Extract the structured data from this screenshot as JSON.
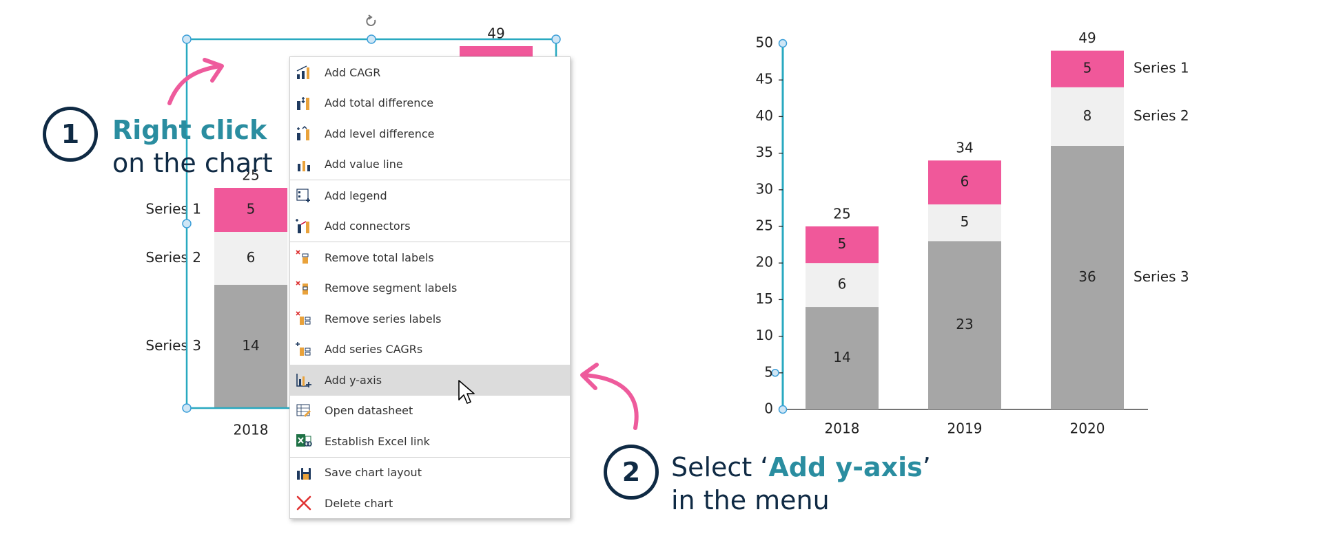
{
  "steps": [
    {
      "number": "1",
      "bold": "Right click",
      "text": "on the chart"
    },
    {
      "number": "2",
      "prefix": "Select ‘",
      "bold": "Add y-axis",
      "suffix": "’",
      "text": "in the menu"
    }
  ],
  "colors": {
    "series1": "#f0589a",
    "series2": "#f0f0f0",
    "series3": "#a6a6a6",
    "accent": "#2a8da0",
    "dark": "#0f2a44",
    "selection": "#29a9c0"
  },
  "context_menu": {
    "items": [
      {
        "label": "Add CAGR",
        "icon": "cagr-icon"
      },
      {
        "label": "Add total difference",
        "icon": "total-difference-icon"
      },
      {
        "label": "Add level difference",
        "icon": "level-difference-icon"
      },
      {
        "label": "Add value line",
        "icon": "value-line-icon"
      },
      {
        "label": "Add legend",
        "icon": "legend-icon"
      },
      {
        "label": "Add connectors",
        "icon": "connectors-icon"
      },
      {
        "label": "Remove total labels",
        "icon": "remove-total-labels-icon"
      },
      {
        "label": "Remove segment labels",
        "icon": "remove-segment-labels-icon"
      },
      {
        "label": "Remove series labels",
        "icon": "remove-series-labels-icon"
      },
      {
        "label": "Add series CAGRs",
        "icon": "series-cagrs-icon"
      },
      {
        "label": "Add y-axis",
        "icon": "y-axis-icon"
      },
      {
        "label": "Open datasheet",
        "icon": "datasheet-icon"
      },
      {
        "label": "Establish Excel link",
        "icon": "excel-link-icon"
      },
      {
        "label": "Save chart layout",
        "icon": "save-layout-icon"
      },
      {
        "label": "Delete chart",
        "icon": "delete-icon"
      }
    ],
    "highlighted": "Add y-axis"
  },
  "chart_data": [
    {
      "type": "bar",
      "stacked": true,
      "categories": [
        "2018"
      ],
      "series": [
        {
          "name": "Series 3",
          "values": [
            14
          ]
        },
        {
          "name": "Series 2",
          "values": [
            6
          ]
        },
        {
          "name": "Series 1",
          "values": [
            5
          ]
        }
      ],
      "totals": [
        25
      ],
      "partial_visible_total": "49",
      "axis": "none"
    },
    {
      "type": "bar",
      "stacked": true,
      "categories": [
        "2018",
        "2019",
        "2020"
      ],
      "series": [
        {
          "name": "Series 3",
          "values": [
            14,
            23,
            36
          ]
        },
        {
          "name": "Series 2",
          "values": [
            6,
            5,
            8
          ]
        },
        {
          "name": "Series 1",
          "values": [
            5,
            6,
            5
          ]
        }
      ],
      "totals": [
        25,
        34,
        49
      ],
      "ylim": [
        0,
        50
      ],
      "yticks": [
        "0",
        "5",
        "10",
        "15",
        "20",
        "25",
        "30",
        "35",
        "40",
        "45",
        "50"
      ],
      "legend": "right"
    }
  ]
}
